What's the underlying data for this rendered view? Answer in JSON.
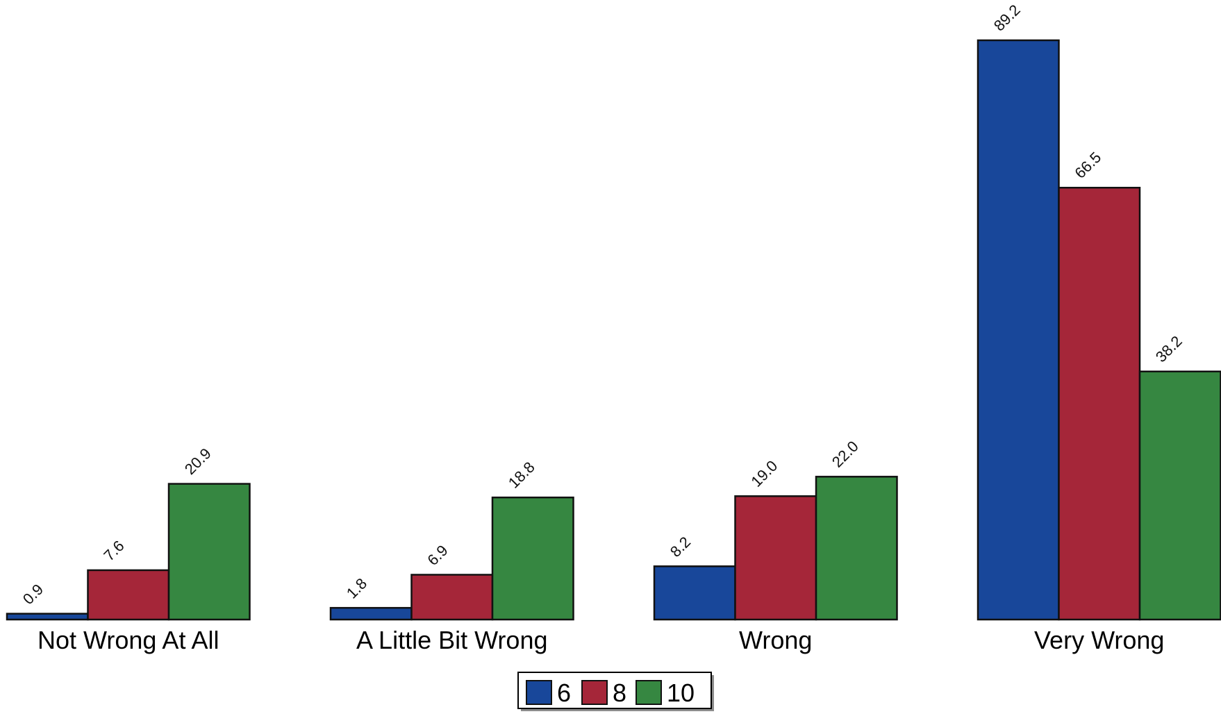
{
  "chart_data": {
    "type": "bar",
    "categories": [
      "Not Wrong At All",
      "A Little Bit Wrong",
      "Wrong",
      "Very Wrong"
    ],
    "series": [
      {
        "name": "6",
        "color": "#18479a",
        "values": [
          0.9,
          1.8,
          8.2,
          89.2
        ],
        "labels": [
          "0.9",
          "1.8",
          "8.2",
          "89.2"
        ]
      },
      {
        "name": "8",
        "color": "#a52639",
        "values": [
          7.6,
          6.9,
          19.0,
          66.5
        ],
        "labels": [
          "7.6",
          "6.9",
          "19.0",
          "66.5"
        ]
      },
      {
        "name": "10",
        "color": "#368741",
        "values": [
          20.9,
          18.8,
          22.0,
          38.2
        ],
        "labels": [
          "20.9",
          "18.8",
          "22.0",
          "38.2"
        ]
      }
    ],
    "ylim": [
      0,
      89.2
    ],
    "grid": false,
    "legend_position": "bottom-center",
    "title": "",
    "xlabel": "",
    "ylabel": ""
  }
}
